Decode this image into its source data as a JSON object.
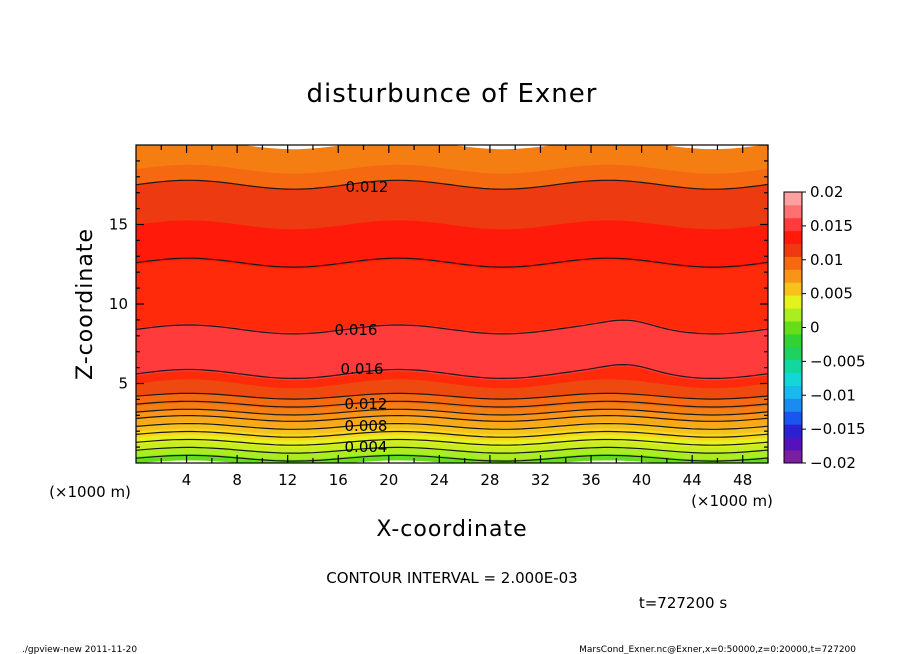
{
  "chart_data": {
    "type": "contour",
    "title": "disturbunce of Exner",
    "xlabel": "X-coordinate",
    "ylabel": "Z-coordinate",
    "x_unit": "(×1000 m)",
    "y_unit": "(×1000 m)",
    "xlim": [
      0,
      50
    ],
    "ylim": [
      0,
      20
    ],
    "x_ticks": [
      "4",
      "8",
      "12",
      "16",
      "20",
      "24",
      "28",
      "32",
      "36",
      "40",
      "44",
      "48"
    ],
    "y_ticks": [
      "5",
      "10",
      "15"
    ],
    "contour_interval_text": "CONTOUR INTERVAL = 2.000E-03",
    "time_text": "t=727200 s",
    "colorbar": {
      "tick_labels": [
        "0.02",
        "0.015",
        "0.01",
        "0.005",
        "0",
        "−0.005",
        "−0.01",
        "−0.015",
        "−0.02"
      ],
      "levels": [
        -0.02,
        0.02
      ],
      "colors": [
        "#7a1fa0",
        "#5511bb",
        "#2a22d0",
        "#1a55ee",
        "#1a8cf0",
        "#19b8ee",
        "#14d6d6",
        "#12d8a0",
        "#20d060",
        "#33d233",
        "#66dd1a",
        "#aaee22",
        "#e6f21e",
        "#f7c21c",
        "#f89418",
        "#f56a10",
        "#ee3a10",
        "#ff1a0a",
        "#ff3b3b",
        "#ff7070",
        "#ffa0a0"
      ]
    },
    "contour_labels": [
      "0.012",
      "0.016",
      "0.016",
      "0.012",
      "0.008",
      "0.004"
    ],
    "bands": [
      {
        "z_low": 0.0,
        "z_high": 0.4,
        "color": "#66dd1a"
      },
      {
        "z_low": 0.4,
        "z_high": 0.8,
        "color": "#aaee22"
      },
      {
        "z_low": 0.8,
        "z_high": 1.2,
        "color": "#c8ee20"
      },
      {
        "z_low": 1.2,
        "z_high": 1.6,
        "color": "#e6f21e"
      },
      {
        "z_low": 1.6,
        "z_high": 2.0,
        "color": "#f7d81c"
      },
      {
        "z_low": 2.0,
        "z_high": 2.4,
        "color": "#f7c21c"
      },
      {
        "z_low": 2.4,
        "z_high": 2.8,
        "color": "#f9a818"
      },
      {
        "z_low": 2.8,
        "z_high": 3.2,
        "color": "#f89418"
      },
      {
        "z_low": 3.2,
        "z_high": 3.6,
        "color": "#f57e12"
      },
      {
        "z_low": 3.6,
        "z_high": 4.2,
        "color": "#f56a10"
      },
      {
        "z_low": 4.2,
        "z_high": 5.0,
        "color": "#ee4a10"
      },
      {
        "z_low": 5.0,
        "z_high": 5.5,
        "color": "#ff2a0a"
      },
      {
        "z_low": 5.5,
        "z_high": 8.5,
        "color": "#ff3b3b"
      },
      {
        "z_low": 8.5,
        "z_high": 12.5,
        "color": "#ff2a0a"
      },
      {
        "z_low": 12.5,
        "z_high": 15.0,
        "color": "#ff1a0a"
      },
      {
        "z_low": 15.0,
        "z_high": 17.5,
        "color": "#ee3a10"
      },
      {
        "z_low": 17.5,
        "z_high": 18.5,
        "color": "#f56a10"
      },
      {
        "z_low": 18.5,
        "z_high": 20.0,
        "color": "#f57e12"
      }
    ],
    "contour_lines_z": [
      17.5,
      12.6,
      8.4,
      5.6,
      4.2,
      3.7,
      3.2,
      2.8,
      2.3,
      1.8,
      1.3,
      0.8,
      0.3
    ]
  },
  "footer": {
    "left": "./gpview-new   2011-11-20",
    "right": "MarsCond_Exner.nc@Exner,x=0:50000,z=0:20000,t=727200"
  }
}
